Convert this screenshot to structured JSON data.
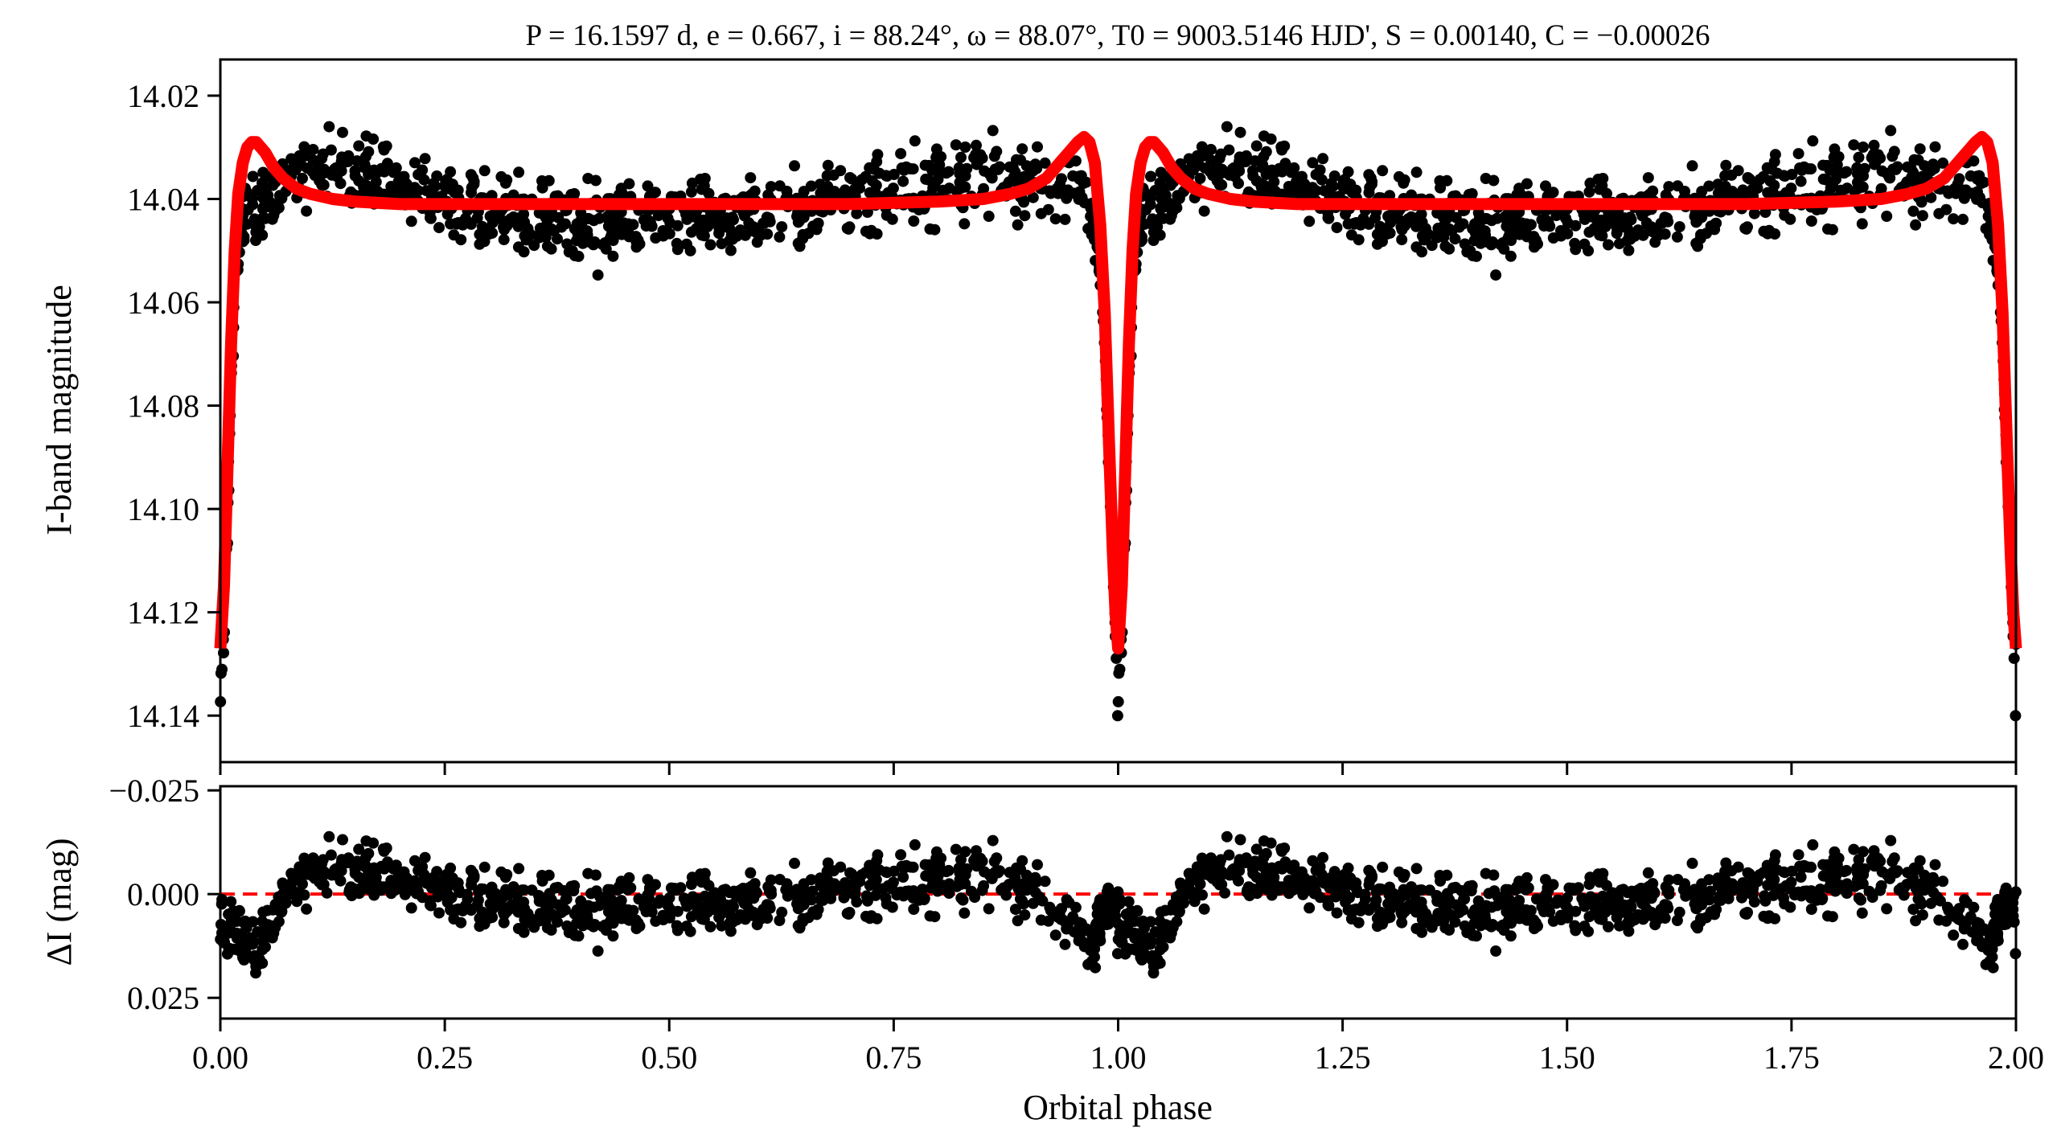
{
  "chart_data": [
    {
      "type": "scatter",
      "panel": "light-curve",
      "title": "P = 16.1597 d, e = 0.667, i = 88.24°, ω = 88.07°, T0 = 9003.5146 HJD', S = 0.00140, C = −0.00026",
      "xlabel": "",
      "ylabel": "I-band magnitude",
      "xlim": [
        0,
        2
      ],
      "ylim": [
        14.149,
        14.013
      ],
      "y_inverted": true,
      "yticks": [
        "14.02",
        "14.04",
        "14.06",
        "14.08",
        "14.10",
        "14.12",
        "14.14"
      ],
      "ytick_values": [
        14.02,
        14.04,
        14.06,
        14.08,
        14.1,
        14.12,
        14.14
      ],
      "xtick_values": [
        0,
        0.25,
        0.5,
        0.75,
        1.0,
        1.25,
        1.5,
        1.75,
        2.0
      ],
      "model": {
        "name": "model",
        "color": "#ff0000",
        "phase": [
          0.0,
          0.004,
          0.008,
          0.012,
          0.016,
          0.02,
          0.025,
          0.03,
          0.035,
          0.04,
          0.045,
          0.05,
          0.06,
          0.07,
          0.085,
          0.1,
          0.125,
          0.15,
          0.2,
          0.3,
          0.5,
          0.7,
          0.8,
          0.85,
          0.88,
          0.9,
          0.92,
          0.935,
          0.945,
          0.955,
          0.962,
          0.968,
          0.974,
          0.98,
          0.985,
          0.99,
          0.994,
          0.997,
          1.0
        ],
        "mag": [
          14.127,
          14.115,
          14.092,
          14.068,
          14.05,
          14.039,
          14.033,
          14.03,
          14.029,
          14.029,
          14.03,
          14.031,
          14.034,
          14.036,
          14.038,
          14.039,
          14.04,
          14.0405,
          14.041,
          14.041,
          14.041,
          14.041,
          14.0405,
          14.04,
          14.039,
          14.038,
          14.036,
          14.033,
          14.031,
          14.029,
          14.028,
          14.029,
          14.033,
          14.045,
          14.062,
          14.088,
          14.108,
          14.12,
          14.127
        ]
      },
      "observations": {
        "name": "observations",
        "color": "#000000",
        "n_per_cycle": 900,
        "noise_sigma_mag": 0.0035,
        "seed": 12345,
        "residual_trend": {
          "phase": [
            0.0,
            0.02,
            0.04,
            0.06,
            0.08,
            0.12,
            0.2,
            0.3,
            0.45,
            0.6,
            0.75,
            0.85,
            0.9,
            0.94,
            0.97,
            0.99,
            1.0
          ],
          "delta": [
            0.006,
            0.01,
            0.014,
            0.006,
            -0.002,
            -0.006,
            -0.004,
            0.002,
            0.003,
            0.002,
            -0.002,
            -0.005,
            -0.002,
            0.006,
            0.012,
            0.004,
            0.006
          ]
        }
      }
    },
    {
      "type": "scatter",
      "panel": "residuals",
      "xlabel": "Orbital phase",
      "ylabel": "ΔI (mag)",
      "xlim": [
        0,
        2
      ],
      "ylim": [
        0.03,
        -0.026
      ],
      "y_inverted": true,
      "yticks": [
        "−0.025",
        "0.000",
        "0.025"
      ],
      "ytick_values": [
        -0.025,
        0.0,
        0.025
      ],
      "xticks": [
        "0.00",
        "0.25",
        "0.50",
        "0.75",
        "1.00",
        "1.25",
        "1.50",
        "1.75",
        "2.00"
      ],
      "xtick_values": [
        0,
        0.25,
        0.5,
        0.75,
        1.0,
        1.25,
        1.5,
        1.75,
        2.0
      ],
      "zero_line": {
        "value": 0.0,
        "color": "#ff0000",
        "style": "dashed"
      }
    }
  ]
}
